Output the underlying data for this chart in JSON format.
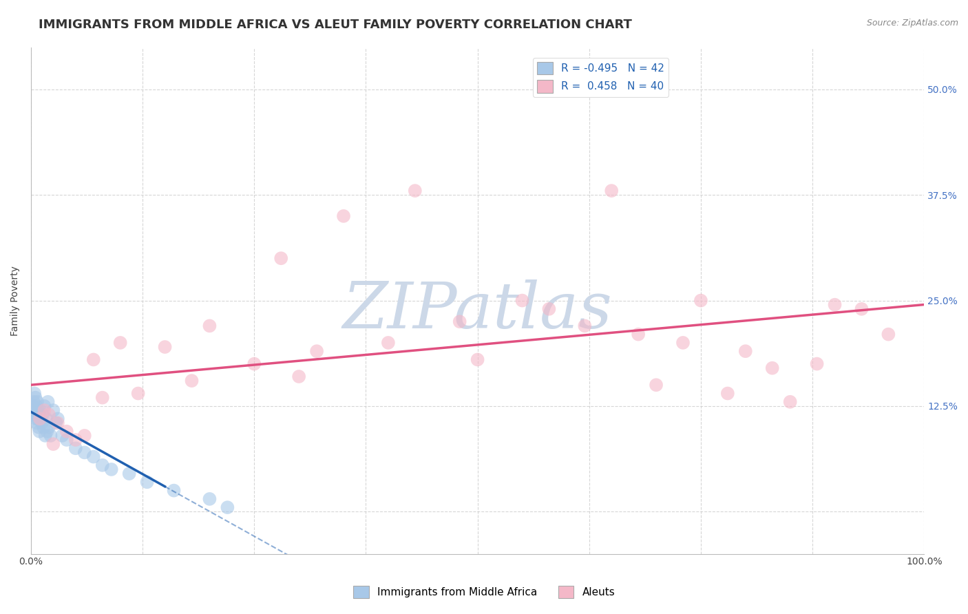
{
  "title": "IMMIGRANTS FROM MIDDLE AFRICA VS ALEUT FAMILY POVERTY CORRELATION CHART",
  "source_text": "Source: ZipAtlas.com",
  "ylabel": "Family Poverty",
  "xlim": [
    0,
    100
  ],
  "ylim": [
    -5,
    55
  ],
  "blue_R": -0.495,
  "blue_N": 42,
  "pink_R": 0.458,
  "pink_N": 40,
  "blue_color": "#a8c8e8",
  "pink_color": "#f4b8c8",
  "blue_line_color": "#2060b0",
  "pink_line_color": "#e05080",
  "watermark": "ZIPatlas",
  "watermark_color": "#ccd8e8",
  "background_color": "#ffffff",
  "grid_color": "#cccccc",
  "title_fontsize": 13,
  "axis_label_fontsize": 10,
  "tick_fontsize": 10,
  "legend_fontsize": 11,
  "blue_x": [
    0.2,
    0.3,
    0.35,
    0.4,
    0.45,
    0.5,
    0.55,
    0.6,
    0.65,
    0.7,
    0.75,
    0.8,
    0.85,
    0.9,
    0.95,
    1.0,
    1.1,
    1.2,
    1.3,
    1.4,
    1.5,
    1.6,
    1.7,
    1.8,
    1.9,
    2.0,
    2.2,
    2.5,
    2.8,
    3.0,
    3.5,
    4.0,
    5.0,
    6.0,
    7.0,
    8.0,
    9.0,
    11.0,
    13.0,
    16.0,
    20.0,
    22.0
  ],
  "blue_y": [
    12.5,
    13.0,
    11.5,
    14.0,
    12.0,
    13.5,
    11.0,
    12.5,
    10.5,
    13.0,
    11.0,
    12.0,
    10.0,
    11.5,
    9.5,
    12.0,
    11.0,
    10.5,
    11.5,
    10.0,
    12.5,
    9.0,
    11.0,
    9.5,
    13.0,
    10.0,
    9.0,
    12.0,
    10.5,
    11.0,
    9.0,
    8.5,
    7.5,
    7.0,
    6.5,
    5.5,
    5.0,
    4.5,
    3.5,
    2.5,
    1.5,
    0.5
  ],
  "pink_x": [
    1.0,
    1.5,
    2.0,
    2.5,
    3.0,
    4.0,
    5.0,
    6.0,
    7.0,
    8.0,
    10.0,
    12.0,
    15.0,
    18.0,
    20.0,
    25.0,
    28.0,
    30.0,
    32.0,
    35.0,
    40.0,
    43.0,
    48.0,
    50.0,
    55.0,
    58.0,
    62.0,
    65.0,
    68.0,
    70.0,
    73.0,
    75.0,
    78.0,
    80.0,
    83.0,
    85.0,
    88.0,
    90.0,
    93.0,
    96.0
  ],
  "pink_y": [
    11.0,
    12.0,
    11.5,
    8.0,
    10.5,
    9.5,
    8.5,
    9.0,
    18.0,
    13.5,
    20.0,
    14.0,
    19.5,
    15.5,
    22.0,
    17.5,
    30.0,
    16.0,
    19.0,
    35.0,
    20.0,
    38.0,
    22.5,
    18.0,
    25.0,
    24.0,
    22.0,
    38.0,
    21.0,
    15.0,
    20.0,
    25.0,
    14.0,
    19.0,
    17.0,
    13.0,
    17.5,
    24.5,
    24.0,
    21.0
  ]
}
